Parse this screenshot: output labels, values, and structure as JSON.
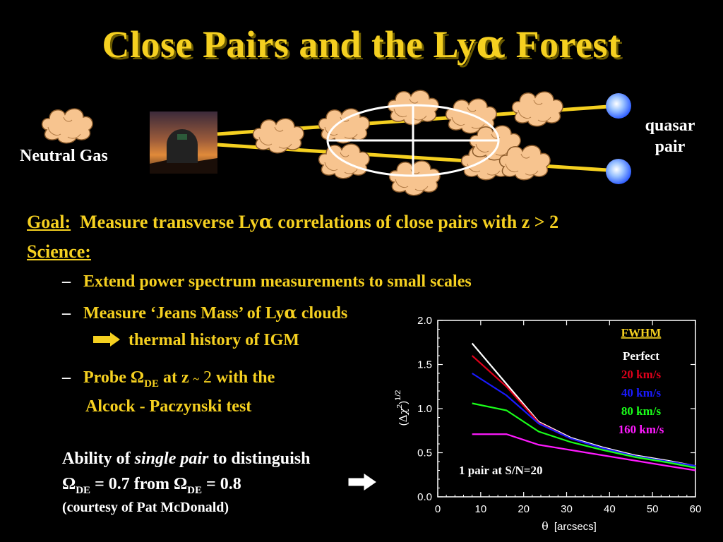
{
  "slide": {
    "title_prefix": "Close Pairs and the Ly",
    "title_alpha": "α",
    "title_suffix": " Forest"
  },
  "diagram": {
    "neutral_gas_label": "Neutral Gas",
    "quasar_label_1": "quasar",
    "quasar_label_2": "pair"
  },
  "goal": {
    "label": "Goal:",
    "text_prefix": "Measure transverse Ly",
    "alpha": "α",
    "text_suffix": " correlations of close pairs with z > 2"
  },
  "science": {
    "label": "Science:",
    "bullet_dash": "–",
    "bullet1": "Extend power spectrum measurements to small scales",
    "bullet2_prefix": "Measure ‘Jeans Mass’ of Ly",
    "bullet2_alpha": "α",
    "bullet2_suffix": " clouds",
    "bullet2_sub": "thermal history of IGM",
    "bullet3_probe": "Probe ",
    "omega": "Ω",
    "de": "DE",
    "bullet3_at": " at z ",
    "tilde": "~",
    "two": " 2",
    "bullet3_with": " with the",
    "bullet3_line2": "Alcock - Paczynski test"
  },
  "ability": {
    "line1_prefix": "Ability of ",
    "line1_italic": "single pair",
    "line1_suffix": " to distinguish",
    "omega": "Ω",
    "de": "DE",
    "value1": " = 0.7 from ",
    "value2": " = 0.8",
    "courtesy": "(courtesy of Pat McDonald)"
  },
  "colors": {
    "title": "#f5d020",
    "cloud": "#f7c48f",
    "quasar": "#3a7bff",
    "sightline": "#f5d020",
    "perfect": "#ffffff",
    "s20": "#e0001b",
    "s40": "#1a1aff",
    "s80": "#1aff1a",
    "s160": "#ff1aff"
  },
  "chart_data": {
    "type": "line",
    "xlabel_theta": "θ",
    "xlabel": "[arcsecs]",
    "ylabel": "(Δχ²)^1/2",
    "ylabel_open": "(",
    "ylabel_delta": "Δ",
    "ylabel_chi": "χ",
    "ylabel_sup2": "2",
    "ylabel_close": ")",
    "ylabel_sup": "1/2",
    "xlim": [
      0,
      60
    ],
    "ylim": [
      0,
      2
    ],
    "xticks": [
      "0",
      "10",
      "20",
      "30",
      "40",
      "50",
      "60"
    ],
    "yticks": [
      "0.0",
      "0.5",
      "1.0",
      "1.5",
      "2.0"
    ],
    "legend_title": "FWHM",
    "annotation": "1 pair at S/N=20",
    "x": [
      8,
      16,
      23.5,
      31,
      38.5,
      46,
      53.5,
      60
    ],
    "series": [
      {
        "name": "Perfect",
        "color": "#ffffff",
        "values": [
          1.74,
          1.28,
          0.85,
          0.67,
          0.56,
          0.47,
          0.41,
          0.35
        ]
      },
      {
        "name": "20  km/s",
        "color": "#e0001b",
        "values": [
          1.6,
          1.25,
          0.84,
          0.66,
          0.55,
          0.46,
          0.4,
          0.35
        ]
      },
      {
        "name": "40  km/s",
        "color": "#1a1aff",
        "values": [
          1.4,
          1.15,
          0.83,
          0.66,
          0.55,
          0.46,
          0.4,
          0.35
        ]
      },
      {
        "name": "80 km/s",
        "color": "#1aff1a",
        "values": [
          1.06,
          0.98,
          0.74,
          0.62,
          0.53,
          0.45,
          0.39,
          0.33
        ]
      },
      {
        "name": "160 km/s",
        "color": "#ff1aff",
        "values": [
          0.71,
          0.71,
          0.59,
          0.53,
          0.47,
          0.41,
          0.35,
          0.3
        ]
      }
    ]
  }
}
